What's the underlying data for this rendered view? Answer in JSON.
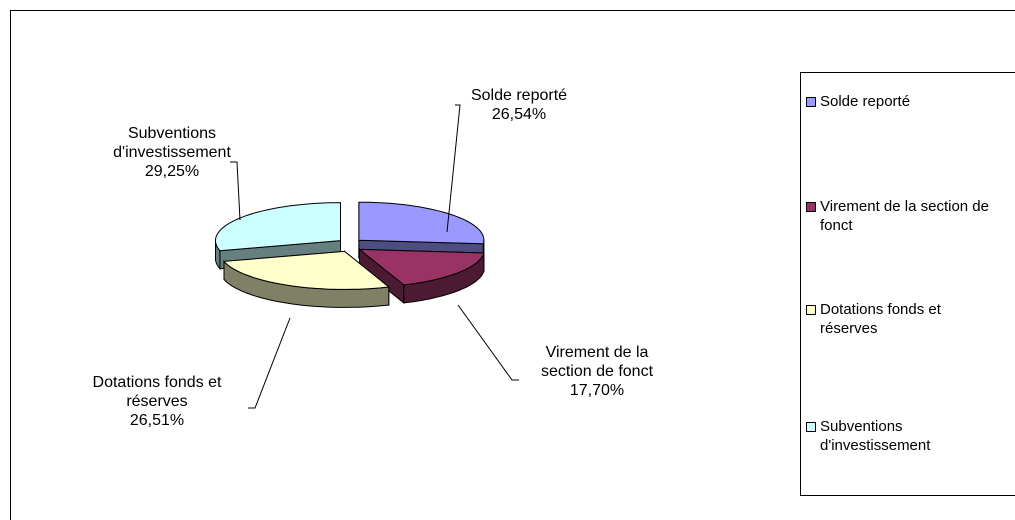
{
  "chart_data": {
    "type": "pie",
    "categories": [
      "Solde reporté",
      "Virement de la section de fonct",
      "Dotations fonds et réserves",
      "Subventions d'investissement"
    ],
    "values": [
      26.54,
      17.7,
      26.51,
      29.25
    ],
    "value_labels": [
      "26,54%",
      "17,70%",
      "26,51%",
      "29,25%"
    ],
    "colors": [
      "#9999ff",
      "#993366",
      "#ffffcc",
      "#ccffff"
    ],
    "legend": "right"
  }
}
